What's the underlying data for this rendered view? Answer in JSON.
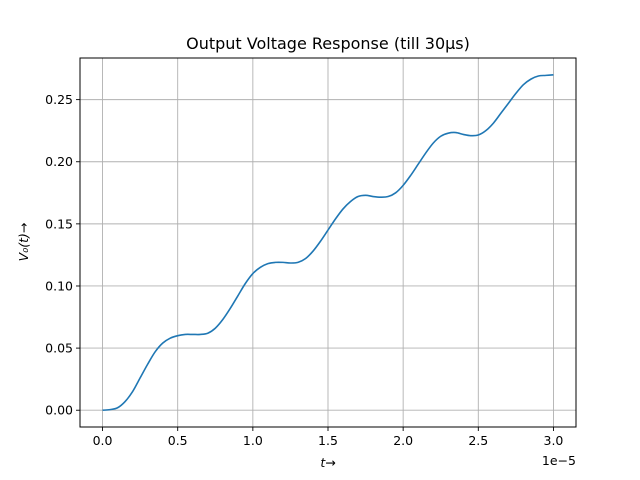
{
  "chart_data": {
    "type": "line",
    "title": "Output Voltage Response (till 30μs)",
    "xlabel": "t→",
    "ylabel": "V₀(t)→",
    "x_offset_text": "1e−5",
    "xlim": [
      -0.15,
      3.15
    ],
    "ylim": [
      -0.0135,
      0.2835
    ],
    "grid": true,
    "xticks": [
      0.0,
      0.5,
      1.0,
      1.5,
      2.0,
      2.5,
      3.0
    ],
    "xtick_labels": [
      "0.0",
      "0.5",
      "1.0",
      "1.5",
      "2.0",
      "2.5",
      "3.0"
    ],
    "yticks": [
      0.0,
      0.05,
      0.1,
      0.15,
      0.2,
      0.25
    ],
    "ytick_labels": [
      "0.00",
      "0.05",
      "0.10",
      "0.15",
      "0.20",
      "0.25"
    ],
    "series": [
      {
        "color": "#1f77b4",
        "x": [
          0.0,
          0.05,
          0.1,
          0.15,
          0.2,
          0.25,
          0.3,
          0.35,
          0.4,
          0.45,
          0.5,
          0.55,
          0.6,
          0.65,
          0.7,
          0.75,
          0.8,
          0.85,
          0.9,
          0.95,
          1.0,
          1.05,
          1.1,
          1.15,
          1.2,
          1.25,
          1.3,
          1.35,
          1.4,
          1.45,
          1.5,
          1.55,
          1.6,
          1.65,
          1.7,
          1.75,
          1.8,
          1.85,
          1.9,
          1.95,
          2.0,
          2.05,
          2.1,
          2.15,
          2.2,
          2.25,
          2.3,
          2.35,
          2.4,
          2.45,
          2.5,
          2.55,
          2.6,
          2.65,
          2.7,
          2.75,
          2.8,
          2.85,
          2.9,
          2.95,
          3.0
        ],
        "y": [
          0.0,
          0.0005,
          0.002,
          0.007,
          0.015,
          0.026,
          0.037,
          0.047,
          0.054,
          0.058,
          0.06,
          0.061,
          0.061,
          0.061,
          0.062,
          0.066,
          0.073,
          0.082,
          0.092,
          0.102,
          0.11,
          0.115,
          0.118,
          0.119,
          0.119,
          0.1185,
          0.119,
          0.122,
          0.128,
          0.136,
          0.145,
          0.154,
          0.162,
          0.168,
          0.172,
          0.173,
          0.172,
          0.1715,
          0.172,
          0.175,
          0.181,
          0.189,
          0.198,
          0.207,
          0.215,
          0.2205,
          0.223,
          0.2235,
          0.222,
          0.221,
          0.2215,
          0.225,
          0.231,
          0.239,
          0.247,
          0.255,
          0.262,
          0.2665,
          0.269,
          0.2695,
          0.27
        ]
      }
    ]
  }
}
